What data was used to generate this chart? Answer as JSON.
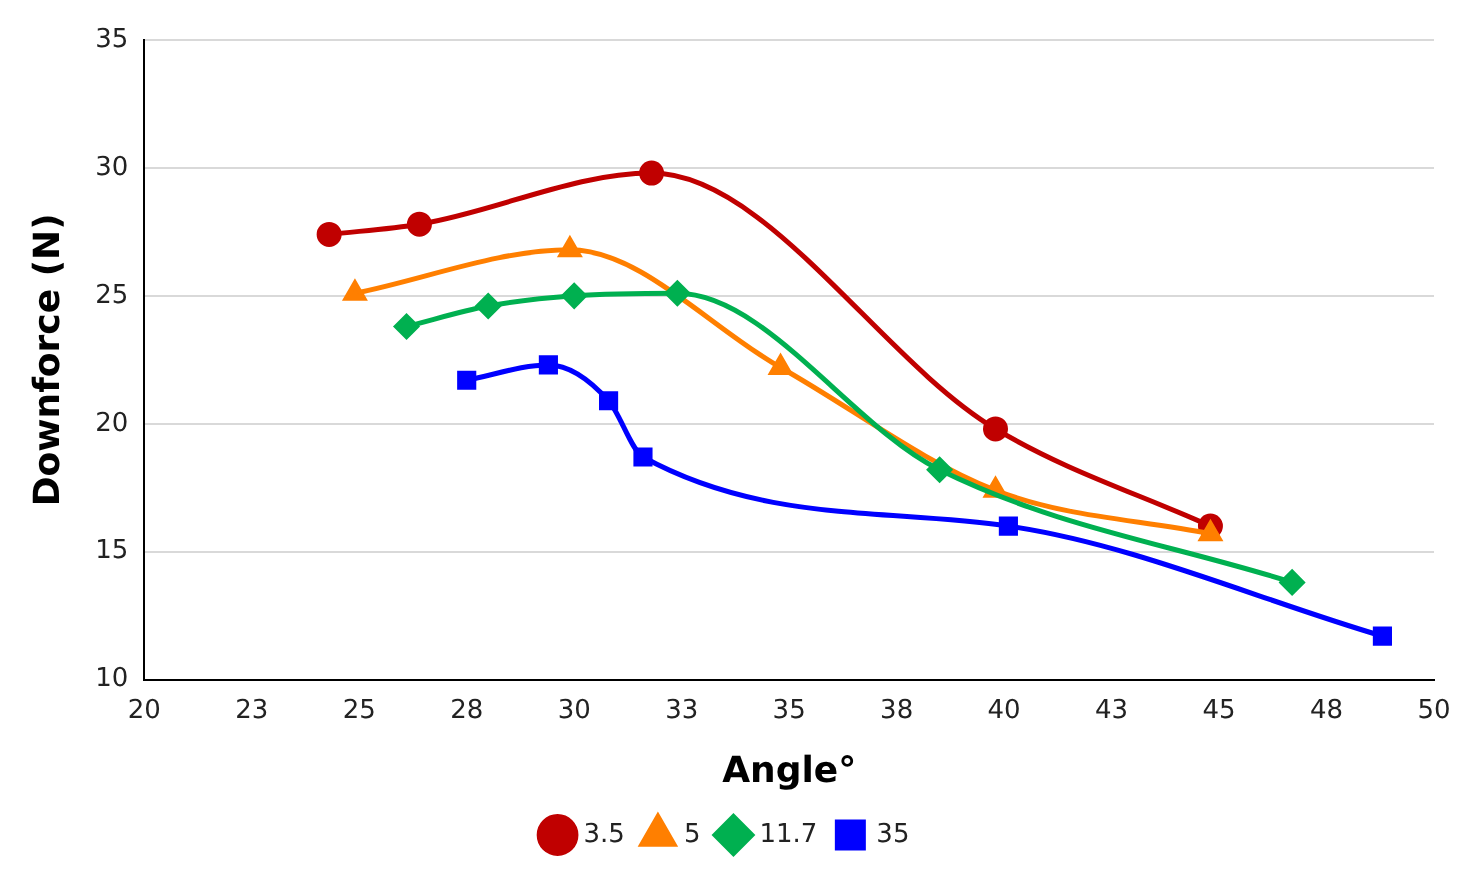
{
  "chart_data": {
    "type": "line",
    "xlabel": "Angle°",
    "ylabel": "Downforce (N)",
    "xlim": [
      20,
      50
    ],
    "xticks": [
      20,
      {
        "value": 22.5,
        "label": "23"
      },
      25,
      {
        "value": 27.5,
        "label": "28"
      },
      30,
      {
        "value": 32.5,
        "label": "33"
      },
      35,
      {
        "value": 37.5,
        "label": "38"
      },
      40,
      {
        "value": 42.5,
        "label": "43"
      },
      45,
      {
        "value": 47.5,
        "label": "48"
      },
      50
    ],
    "ylim": [
      10,
      35
    ],
    "yticks": [
      10,
      15,
      20,
      25,
      30,
      35
    ],
    "grid": "y",
    "legend": "bottom",
    "line_style": "solid",
    "series": [
      {
        "name": "3.5",
        "color": "#c00000",
        "marker": "circle",
        "x": [
          24.3,
          26.4,
          31.8,
          39.8,
          44.8
        ],
        "values": [
          27.4,
          27.8,
          29.8,
          19.8,
          16.0
        ]
      },
      {
        "name": "5",
        "color": "#ff7f00",
        "marker": "triangle",
        "x": [
          24.9,
          29.9,
          34.8,
          39.8,
          44.8
        ],
        "values": [
          25.1,
          26.8,
          22.2,
          17.4,
          15.7
        ]
      },
      {
        "name": "11.7",
        "color": "#00b050",
        "marker": "diamond",
        "x": [
          26.1,
          28,
          30,
          32.4,
          38.5,
          46.7
        ],
        "values": [
          23.8,
          24.6,
          25.0,
          25.1,
          18.2,
          13.8
        ]
      },
      {
        "name": "35",
        "color": "#0000ff",
        "marker": "square",
        "x": [
          27.5,
          29.4,
          30.8,
          31.6,
          40.1,
          48.8
        ],
        "values": [
          21.7,
          22.3,
          20.9,
          18.7,
          16.0,
          11.7
        ]
      }
    ]
  }
}
